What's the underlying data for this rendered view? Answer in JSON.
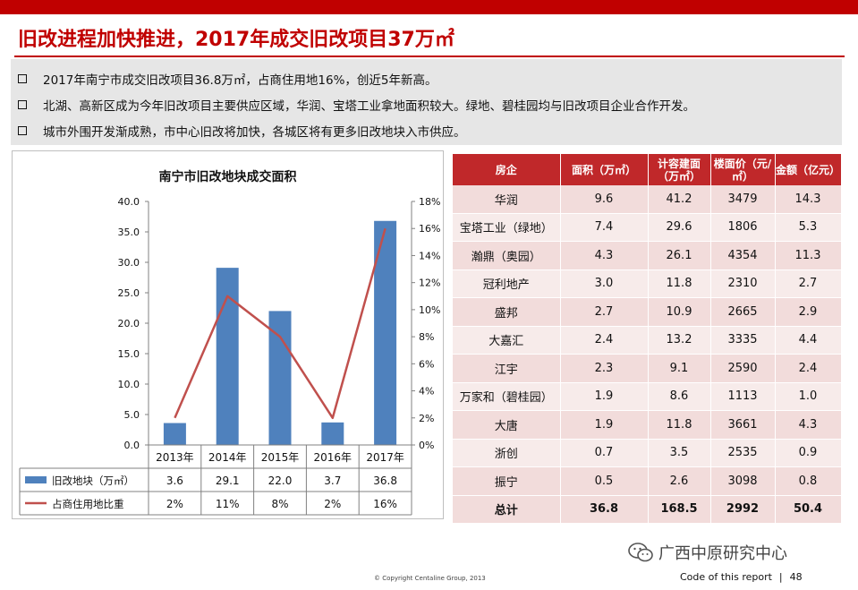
{
  "page": {
    "title": "旧改进程加快推进，2017年成交旧改项目37万㎡",
    "bullets": [
      "2017年南宁市成交旧改项目36.8万㎡，占商住用地16%，创近5年新高。",
      "北湖、高新区成为今年旧改项目主要供应区域，华润、宝塔工业拿地面积较大。绿地、碧桂园均与旧改项目企业合作开发。",
      "城市外围开发渐成熟，市中心旧改将加快，各城区将有更多旧改地块入市供应。"
    ],
    "watermark": "广西中原研究中心",
    "copyright": "© Copyright  Centaline Group, 2013",
    "footer_code": "Code of this report",
    "footer_sep": "|",
    "page_number": "48"
  },
  "colors": {
    "accent": "#c00000",
    "bar": "#4f81bd",
    "line": "#c0504d",
    "table_header": "#c0282a",
    "row_odd": "#f2dcdb",
    "row_even": "#f7ebea"
  },
  "chart_data": {
    "type": "bar",
    "title": "南宁市旧改地块成交面积",
    "categories": [
      "2013年",
      "2014年",
      "2015年",
      "2016年",
      "2017年"
    ],
    "series": [
      {
        "name": "旧改地块（万㎡）",
        "type": "bar",
        "axis": "left",
        "values": [
          3.6,
          29.1,
          22.0,
          3.7,
          36.8
        ],
        "labels": [
          "3.6",
          "29.1",
          "22.0",
          "3.7",
          "36.8"
        ]
      },
      {
        "name": "占商住用地比重",
        "type": "line",
        "axis": "right",
        "values": [
          2,
          11,
          8,
          2,
          16
        ],
        "labels": [
          "2%",
          "11%",
          "8%",
          "2%",
          "16%"
        ]
      }
    ],
    "left_axis": {
      "min": 0,
      "max": 40,
      "step": 5,
      "ticks": [
        "0.0",
        "5.0",
        "10.0",
        "15.0",
        "20.0",
        "25.0",
        "30.0",
        "35.0",
        "40.0"
      ]
    },
    "right_axis": {
      "min": 0,
      "max": 18,
      "step": 2,
      "ticks": [
        "0%",
        "2%",
        "4%",
        "6%",
        "8%",
        "10%",
        "12%",
        "14%",
        "16%",
        "18%"
      ]
    },
    "grid": false,
    "legend": "bottom-data-table"
  },
  "table": {
    "headers": [
      "房企",
      "面积（万㎡）",
      "计容建面（万㎡）",
      "楼面价（元/㎡）",
      "金额（亿元）"
    ],
    "rows": [
      [
        "华润",
        "9.6",
        "41.2",
        "3479",
        "14.3"
      ],
      [
        "宝塔工业（绿地）",
        "7.4",
        "29.6",
        "1806",
        "5.3"
      ],
      [
        "瀚鼎（奥园）",
        "4.3",
        "26.1",
        "4354",
        "11.3"
      ],
      [
        "冠利地产",
        "3.0",
        "11.8",
        "2310",
        "2.7"
      ],
      [
        "盛邦",
        "2.7",
        "10.9",
        "2665",
        "2.9"
      ],
      [
        "大嘉汇",
        "2.4",
        "13.2",
        "3335",
        "4.4"
      ],
      [
        "江宇",
        "2.3",
        "9.1",
        "2590",
        "2.4"
      ],
      [
        "万家和（碧桂园）",
        "1.9",
        "8.6",
        "1113",
        "1.0"
      ],
      [
        "大唐",
        "1.9",
        "11.8",
        "3661",
        "4.3"
      ],
      [
        "浙创",
        "0.7",
        "3.5",
        "2535",
        "0.9"
      ],
      [
        "振宁",
        "0.5",
        "2.6",
        "3098",
        "0.8"
      ]
    ],
    "total": [
      "总计",
      "36.8",
      "168.5",
      "2992",
      "50.4"
    ]
  }
}
